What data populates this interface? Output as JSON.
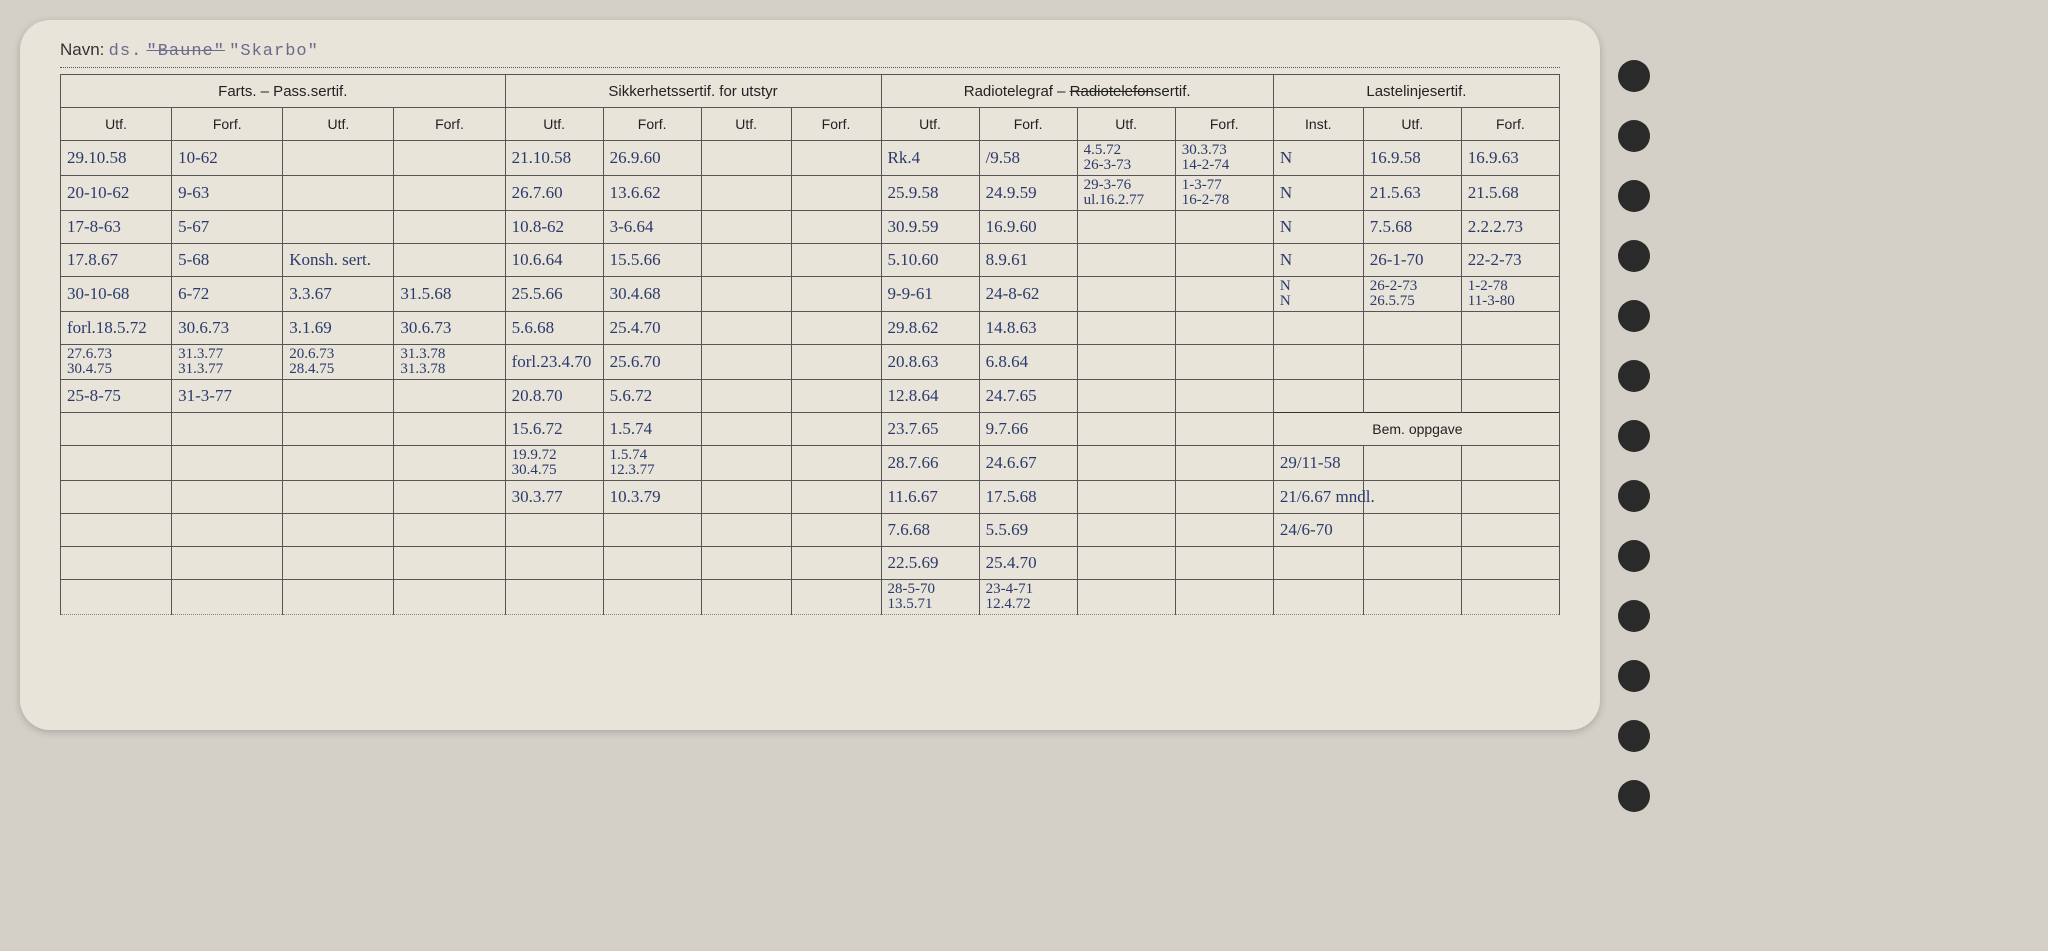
{
  "navn": {
    "label": "Navn:",
    "prefix": "ds.",
    "struck": "\"Baune\"",
    "name": "\"Skarbo\""
  },
  "groups": {
    "g1": "Farts. – Pass.sertif.",
    "g2": "Sikkerhetssertif. for utstyr",
    "g3": "Radiotelegraf – Radiotelefonsertif.",
    "g3_struck": "Radiotelefon",
    "g4": "Lastelinjesertif."
  },
  "subs": {
    "utf": "Utf.",
    "forf": "Forf.",
    "inst": "Inst.",
    "bem": "Bem. oppgave"
  },
  "rows": [
    {
      "c": [
        "29.10.58",
        "10-62",
        "",
        "",
        "21.10.58",
        "26.9.60",
        "",
        "",
        "Rk.4",
        "/9.58",
        "4.5.72\n26-3-73",
        "30.3.73\n14-2-74",
        "N",
        "16.9.58",
        "16.9.63"
      ]
    },
    {
      "c": [
        "20-10-62",
        "9-63",
        "",
        "",
        "26.7.60",
        "13.6.62",
        "",
        "",
        "25.9.58",
        "24.9.59",
        "29-3-76\nul.16.2.77",
        "1-3-77\n16-2-78",
        "N",
        "21.5.63",
        "21.5.68"
      ]
    },
    {
      "c": [
        "17-8-63",
        "5-67",
        "",
        "",
        "10.8-62",
        "3-6.64",
        "",
        "",
        "30.9.59",
        "16.9.60",
        "",
        "",
        "N",
        "7.5.68",
        "2.2.2.73"
      ]
    },
    {
      "c": [
        "17.8.67",
        "5-68",
        "Konsh. sert.",
        "",
        "10.6.64",
        "15.5.66",
        "",
        "",
        "5.10.60",
        "8.9.61",
        "",
        "",
        "N",
        "26-1-70",
        "22-2-73"
      ]
    },
    {
      "c": [
        "30-10-68",
        "6-72",
        "3.3.67",
        "31.5.68",
        "25.5.66",
        "30.4.68",
        "",
        "",
        "9-9-61",
        "24-8-62",
        "",
        "",
        "N\nN",
        "26-2-73\n26.5.75",
        "1-2-78\n11-3-80"
      ]
    },
    {
      "c": [
        "forl.18.5.72",
        "30.6.73",
        "3.1.69",
        "30.6.73",
        "5.6.68",
        "25.4.70",
        "",
        "",
        "29.8.62",
        "14.8.63",
        "",
        "",
        "",
        "",
        ""
      ]
    },
    {
      "c": [
        "27.6.73\n30.4.75",
        "31.3.77\n31.3.77",
        "20.6.73\n28.4.75",
        "31.3.78\n31.3.78",
        "forl.23.4.70",
        "25.6.70",
        "",
        "",
        "20.8.63",
        "6.8.64",
        "",
        "",
        "",
        "",
        ""
      ]
    },
    {
      "c": [
        "25-8-75",
        "31-3-77",
        "",
        "",
        "20.8.70",
        "5.6.72",
        "",
        "",
        "12.8.64",
        "24.7.65",
        "",
        "",
        "",
        "",
        ""
      ]
    },
    {
      "c": [
        "",
        "",
        "",
        "",
        "15.6.72",
        "1.5.74",
        "",
        "",
        "23.7.65",
        "9.7.66",
        "",
        "",
        "BEM",
        "",
        ""
      ]
    },
    {
      "c": [
        "",
        "",
        "",
        "",
        "19.9.72\n30.4.75",
        "1.5.74\n12.3.77",
        "",
        "",
        "28.7.66",
        "24.6.67",
        "",
        "",
        "29/11-58",
        "",
        ""
      ]
    },
    {
      "c": [
        "",
        "",
        "",
        "",
        "30.3.77",
        "10.3.79",
        "",
        "",
        "11.6.67",
        "17.5.68",
        "",
        "",
        "21/6.67 mndl.",
        "",
        ""
      ]
    },
    {
      "c": [
        "",
        "",
        "",
        "",
        "",
        "",
        "",
        "",
        "7.6.68",
        "5.5.69",
        "",
        "",
        "24/6-70",
        "",
        ""
      ]
    },
    {
      "c": [
        "",
        "",
        "",
        "",
        "",
        "",
        "",
        "",
        "22.5.69",
        "25.4.70",
        "",
        "",
        "",
        "",
        ""
      ]
    },
    {
      "c": [
        "",
        "",
        "",
        "",
        "",
        "",
        "",
        "",
        "28-5-70\n13.5.71",
        "23-4-71\n12.4.72",
        "",
        "",
        "",
        "",
        ""
      ]
    }
  ]
}
